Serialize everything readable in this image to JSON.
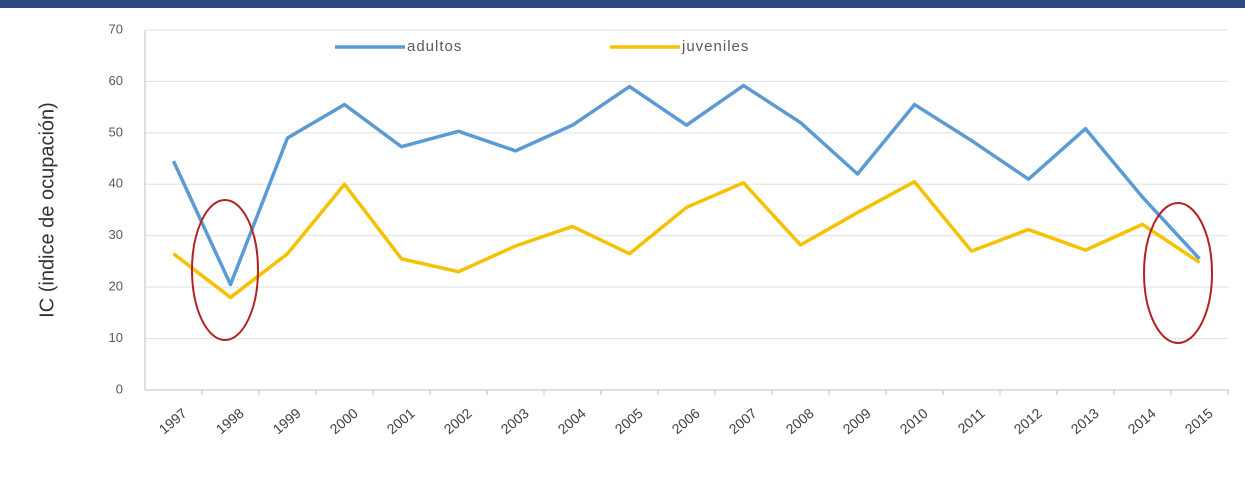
{
  "chart_data": {
    "type": "line",
    "y_label": "IC (indice de ocupación)",
    "categories": [
      "1997",
      "1998",
      "1999",
      "2000",
      "2001",
      "2002",
      "2003",
      "2004",
      "2005",
      "2006",
      "2007",
      "2008",
      "2009",
      "2010",
      "2011",
      "2012",
      "2013",
      "2014",
      "2015"
    ],
    "series": [
      {
        "name": "adultos",
        "color": "#5b9bd5",
        "values": [
          44.5,
          20.5,
          49,
          55.5,
          47.3,
          50.3,
          46.5,
          51.5,
          59,
          51.5,
          59.2,
          52,
          42,
          55.5,
          48.5,
          41,
          50.8,
          37.5,
          25.5
        ]
      },
      {
        "name": "juveniles",
        "color": "#f5c100",
        "values": [
          26.5,
          18,
          26.5,
          40,
          25.5,
          23,
          28,
          31.8,
          26.5,
          35.5,
          40.3,
          28.2,
          34.5,
          40.5,
          27,
          31.2,
          27.2,
          32.2,
          24.8
        ]
      }
    ],
    "ylim": [
      0,
      70
    ],
    "yticks": [
      0,
      10,
      20,
      30,
      40,
      50,
      60,
      70
    ],
    "grid": true,
    "legend": "top"
  }
}
